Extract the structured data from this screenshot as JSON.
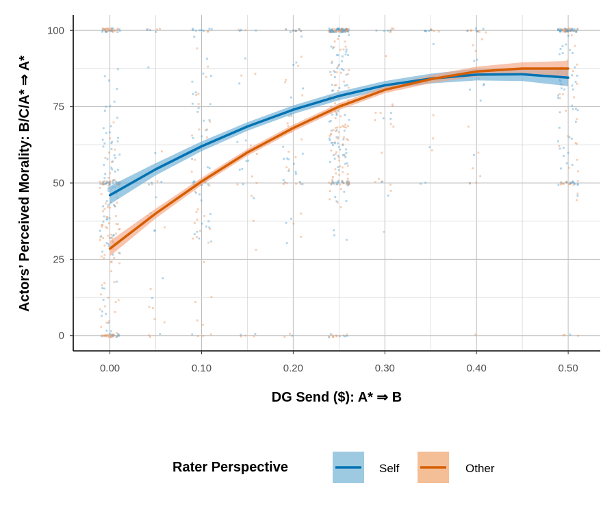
{
  "chart_data": {
    "type": "scatter",
    "xlabel": "DG Send ($): A* ⇒ B",
    "ylabel": "Actors’ Perceived Morality: B/C/A* ⇒ A*",
    "xlim": [
      -0.04,
      0.535
    ],
    "ylim": [
      -5,
      105
    ],
    "x_ticks": [
      0.0,
      0.1,
      0.2,
      0.3,
      0.4,
      0.5
    ],
    "x_tick_labels": [
      "0.00",
      "0.10",
      "0.20",
      "0.30",
      "0.40",
      "0.50"
    ],
    "y_ticks": [
      0,
      25,
      50,
      75,
      100
    ],
    "y_tick_labels": [
      "0",
      "25",
      "50",
      "75",
      "100"
    ],
    "grid": true,
    "legend": {
      "title": "Rater Perspective",
      "placement": "bottom"
    },
    "series": [
      {
        "name": "Self",
        "color": "#0072B2",
        "band_color": "#6baed6",
        "fit": {
          "x": [
            0.0,
            0.05,
            0.1,
            0.15,
            0.2,
            0.25,
            0.3,
            0.35,
            0.4,
            0.45,
            0.5
          ],
          "y": [
            46,
            54.5,
            62,
            68.5,
            74,
            78.5,
            82,
            84.2,
            85.5,
            85.6,
            84.5
          ],
          "band_half_width": [
            3,
            2,
            1.6,
            1.4,
            1.4,
            1.4,
            1.4,
            1.6,
            1.9,
            2.2,
            2.8
          ]
        }
      },
      {
        "name": "Other",
        "color": "#D55E00",
        "band_color": "#f4a582",
        "fit": {
          "x": [
            0.0,
            0.05,
            0.1,
            0.15,
            0.2,
            0.25,
            0.3,
            0.35,
            0.4,
            0.45,
            0.5
          ],
          "y": [
            28.5,
            40,
            50.5,
            60,
            68,
            75,
            80.5,
            84,
            86.5,
            87.5,
            87.5
          ],
          "band_half_width": [
            2.5,
            1.6,
            1.2,
            1.1,
            1.1,
            1.1,
            1.1,
            1.3,
            1.6,
            2,
            2.5
          ]
        }
      }
    ],
    "jitter_clusters": [
      {
        "x": 0.0,
        "weight": 8
      },
      {
        "x": 0.05,
        "weight": 1
      },
      {
        "x": 0.1,
        "weight": 3
      },
      {
        "x": 0.15,
        "weight": 1
      },
      {
        "x": 0.2,
        "weight": 2
      },
      {
        "x": 0.25,
        "weight": 9
      },
      {
        "x": 0.3,
        "weight": 1
      },
      {
        "x": 0.35,
        "weight": 0.6
      },
      {
        "x": 0.4,
        "weight": 1
      },
      {
        "x": 0.5,
        "weight": 5
      }
    ]
  }
}
